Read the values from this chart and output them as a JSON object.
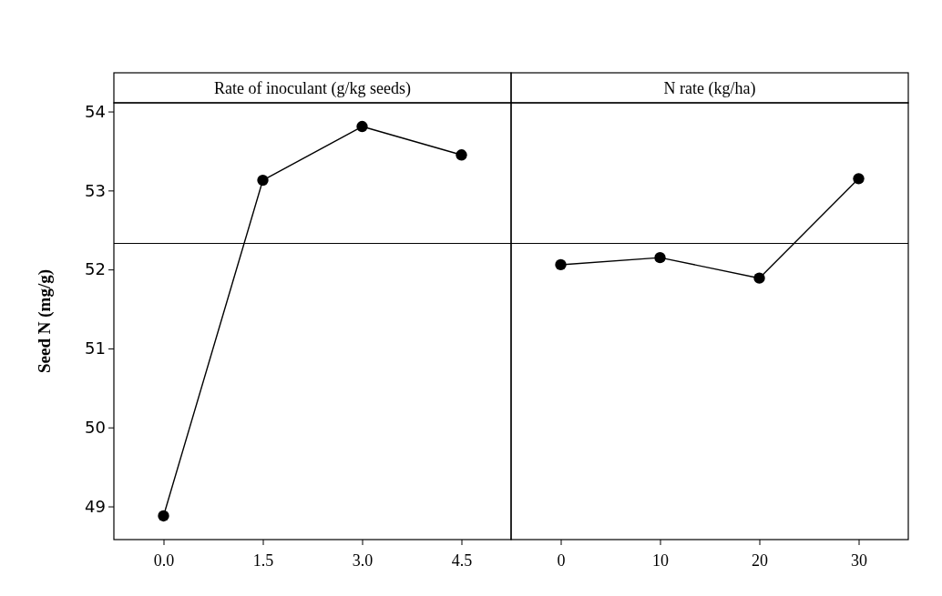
{
  "chart_data": [
    {
      "type": "line",
      "title": "Rate of inoculant (g/kg seeds)",
      "ylabel": "Seed N (mg/g)",
      "x": [
        0,
        1.5,
        3,
        4.5
      ],
      "xlim": [
        -0.75,
        5.25
      ],
      "xticks": [
        {
          "value": 0,
          "label": "0.0"
        },
        1.5,
        {
          "value": 3,
          "label": "3.0"
        },
        4.5
      ],
      "ylim": [
        48.58,
        54.11
      ],
      "yticks": [
        49,
        50,
        51,
        52,
        53,
        54
      ],
      "series": [
        {
          "color": "#000000",
          "values": [
            48.88,
            53.13,
            53.81,
            53.45
          ]
        }
      ],
      "ref_lines": [
        {
          "axis": "y",
          "value": 52.33,
          "color": "#000000"
        }
      ],
      "marker": "circle",
      "line_style": "solid",
      "grid": false
    },
    {
      "type": "line",
      "title": "N rate (kg/ha)",
      "x": [
        0,
        10,
        20,
        30
      ],
      "xlim": [
        -5,
        35
      ],
      "xticks": [
        0,
        10,
        20,
        30
      ],
      "ylim": [
        48.58,
        54.11
      ],
      "tick_labels": "x",
      "series": [
        {
          "color": "#000000",
          "values": [
            52.06,
            52.15,
            51.89,
            53.15
          ]
        }
      ],
      "ref_lines": [
        {
          "axis": "y",
          "value": 52.33,
          "color": "#000000"
        }
      ],
      "marker": "circle",
      "line_style": "solid",
      "grid": false
    }
  ]
}
